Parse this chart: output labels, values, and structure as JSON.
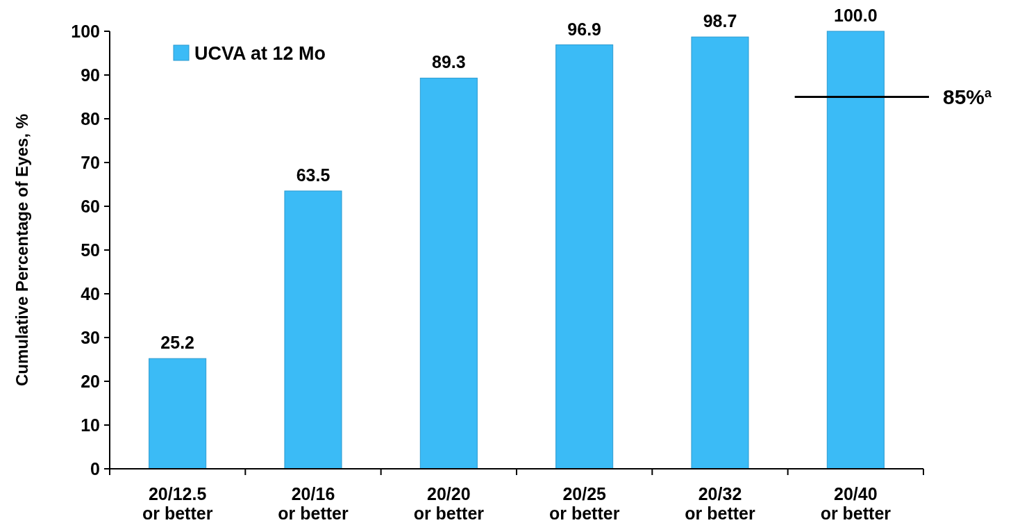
{
  "chart_data": {
    "type": "bar",
    "ylabel": "Cumulative Percentage of Eyes, %",
    "categories": [
      "20/12.5\nor better",
      "20/16\nor better",
      "20/20\nor better",
      "20/25\nor better",
      "20/32\nor better",
      "20/40\nor better"
    ],
    "series": [
      {
        "name": "UCVA at 12 Mo",
        "color": "#3bbbf6",
        "values": [
          25.2,
          63.5,
          89.3,
          96.9,
          98.7,
          100.0
        ],
        "value_labels": [
          "25.2",
          "63.5",
          "89.3",
          "96.9",
          "98.7",
          "100.0"
        ]
      }
    ],
    "ylim": [
      0,
      100
    ],
    "yticks": [
      0,
      10,
      20,
      30,
      40,
      50,
      60,
      70,
      80,
      90,
      100
    ],
    "ref_lines": [
      {
        "axis": "y",
        "value": 85,
        "label": "85%$^{a}$",
        "color": "#000000"
      }
    ],
    "legend": "top left",
    "grid": false
  }
}
